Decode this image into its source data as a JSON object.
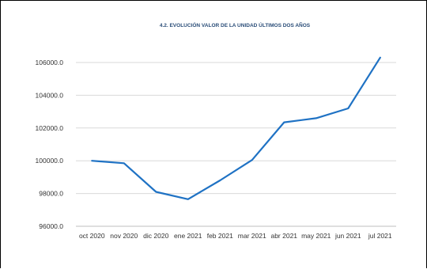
{
  "chart_data": {
    "type": "line",
    "title": "4.2. EVOLUCIÓN VALOR DE LA UNIDAD ÚLTIMOS DOS AÑOS",
    "xlabel": "",
    "ylabel": "",
    "categories": [
      "oct 2020",
      "nov 2020",
      "dic 2020",
      "ene 2021",
      "feb 2021",
      "mar 2021",
      "abr 2021",
      "may 2021",
      "jun 2021",
      "jul 2021"
    ],
    "y_ticks": [
      "96000.0",
      "98000.0",
      "100000.0",
      "102000.0",
      "104000.0",
      "106000.0"
    ],
    "ylim": [
      96000,
      106000
    ],
    "series": [
      {
        "values": [
          100000,
          99850,
          98100,
          97650,
          98800,
          100050,
          102350,
          102600,
          103200,
          106300
        ]
      }
    ],
    "grid": true,
    "legend": "none",
    "line_color": "#1f72c4"
  }
}
